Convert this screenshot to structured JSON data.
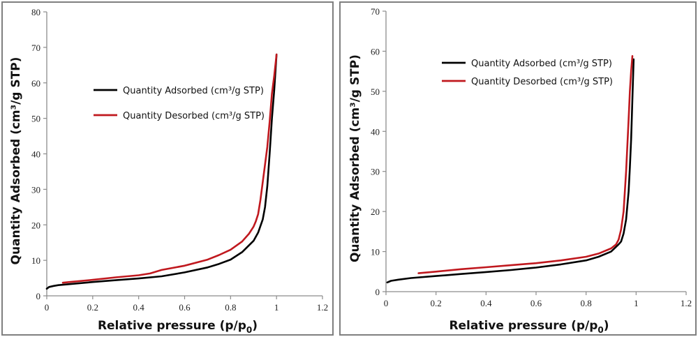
{
  "chart_data": [
    {
      "type": "line",
      "title": "",
      "xlabel": "Relative pressure (p/p0)",
      "xlabel_main": "Relative pressure (p/p",
      "xlabel_sub": "0",
      "xlabel_end": ")",
      "ylabel": "Quantity Adsorbed (cm³/g STP)",
      "xlim": [
        0,
        1.2
      ],
      "ylim": [
        0,
        80
      ],
      "xticks": [
        0,
        0.2,
        0.4,
        0.6,
        0.8,
        1,
        1.2
      ],
      "xtick_labels": [
        "0",
        "0.2",
        "0.4",
        "0.6",
        "0.8",
        "1",
        "1.2"
      ],
      "yticks": [
        0,
        10,
        20,
        30,
        40,
        50,
        60,
        70,
        80
      ],
      "ytick_labels": [
        "0",
        "10",
        "20",
        "30",
        "40",
        "50",
        "60",
        "70",
        "80"
      ],
      "grid": false,
      "legend_position": "upper-center",
      "series": [
        {
          "name": "Quantity Adsorbed  (cm³/g STP)",
          "color": "#000000",
          "x": [
            0.0,
            0.01,
            0.03,
            0.05,
            0.1,
            0.2,
            0.3,
            0.4,
            0.5,
            0.6,
            0.7,
            0.75,
            0.8,
            0.85,
            0.9,
            0.92,
            0.94,
            0.95,
            0.96,
            0.97,
            0.98,
            0.99,
            1.0
          ],
          "y": [
            2.0,
            2.5,
            2.8,
            3.0,
            3.3,
            3.9,
            4.4,
            4.9,
            5.5,
            6.6,
            8.0,
            9.0,
            10.2,
            12.3,
            15.5,
            17.8,
            21.5,
            25.0,
            31.0,
            40.0,
            50.0,
            58.0,
            68.0
          ]
        },
        {
          "name": "Quantity Desorbed  (cm³/g STP)",
          "color": "#c0181e",
          "x": [
            0.07,
            0.1,
            0.2,
            0.3,
            0.4,
            0.45,
            0.48,
            0.5,
            0.6,
            0.7,
            0.75,
            0.8,
            0.85,
            0.88,
            0.9,
            0.91,
            0.92,
            0.93,
            0.94,
            0.95,
            0.96,
            0.97,
            0.98,
            0.99,
            1.0
          ],
          "y": [
            3.7,
            3.9,
            4.5,
            5.2,
            5.8,
            6.3,
            6.9,
            7.3,
            8.5,
            10.2,
            11.5,
            13.0,
            15.3,
            17.5,
            19.5,
            21.0,
            23.0,
            27.0,
            32.0,
            37.0,
            42.0,
            49.0,
            57.0,
            62.0,
            68.0
          ]
        }
      ]
    },
    {
      "type": "line",
      "title": "",
      "xlabel": "Relative pressure (p/p0)",
      "xlabel_main": "Relative pressure (p/p",
      "xlabel_sub": "0",
      "xlabel_end": ")",
      "ylabel": "Quantity Adsorbed (cm³/g STP)",
      "xlim": [
        0,
        1.2
      ],
      "ylim": [
        0,
        70
      ],
      "xticks": [
        0,
        0.2,
        0.4,
        0.6,
        0.8,
        1,
        1.2
      ],
      "xtick_labels": [
        "0",
        "0.2",
        "0.4",
        "0.6",
        "0.8",
        "1",
        "1.2"
      ],
      "yticks": [
        0,
        10,
        20,
        30,
        40,
        50,
        60,
        70
      ],
      "ytick_labels": [
        "0",
        "10",
        "20",
        "30",
        "40",
        "50",
        "60",
        "70"
      ],
      "grid": false,
      "legend_position": "upper-center",
      "series": [
        {
          "name": "Quantity Adsorbed  (cm³/g STP)",
          "color": "#000000",
          "x": [
            0.005,
            0.02,
            0.05,
            0.1,
            0.2,
            0.3,
            0.4,
            0.5,
            0.6,
            0.7,
            0.8,
            0.85,
            0.9,
            0.93,
            0.94,
            0.95,
            0.96,
            0.97,
            0.975,
            0.98,
            0.985,
            0.99
          ],
          "y": [
            2.3,
            2.7,
            3.0,
            3.4,
            3.9,
            4.4,
            4.9,
            5.4,
            6.0,
            6.8,
            7.8,
            8.7,
            10.0,
            11.8,
            12.5,
            14.5,
            18.0,
            25.0,
            31.0,
            38.0,
            48.0,
            58.0
          ]
        },
        {
          "name": "Quantity Desorbed  (cm³/g STP)",
          "color": "#c0181e",
          "x": [
            0.13,
            0.2,
            0.3,
            0.4,
            0.5,
            0.6,
            0.7,
            0.8,
            0.85,
            0.9,
            0.92,
            0.93,
            0.94,
            0.95,
            0.96,
            0.97,
            0.975,
            0.98,
            0.985
          ],
          "y": [
            4.6,
            5.0,
            5.6,
            6.1,
            6.6,
            7.1,
            7.8,
            8.7,
            9.5,
            10.8,
            11.8,
            13.0,
            15.5,
            20.0,
            30.0,
            43.0,
            50.0,
            55.0,
            58.8
          ]
        }
      ]
    }
  ]
}
